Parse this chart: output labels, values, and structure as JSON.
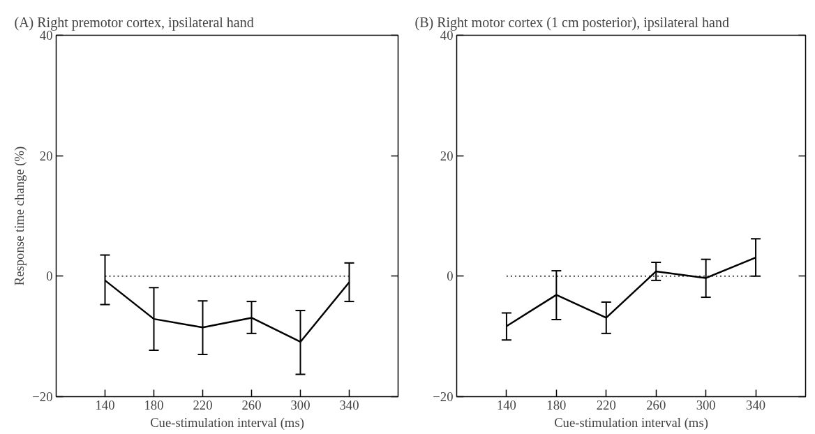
{
  "chart_data": [
    {
      "type": "line",
      "title": "(A)  Right premotor cortex, ipsilateral hand",
      "xlabel": "Cue-stimulation interval (ms)",
      "ylabel": "Response time change (%)",
      "x": [
        140,
        180,
        220,
        260,
        300,
        340
      ],
      "series": [
        {
          "color": "#000000",
          "values": [
            -0.7,
            -7.1,
            -8.5,
            -6.9,
            -10.9,
            -1.0
          ],
          "errors": [
            [
              -4.7,
              3.5
            ],
            [
              -12.3,
              -1.9
            ],
            [
              -13.0,
              -4.1
            ],
            [
              -9.5,
              -4.2
            ],
            [
              -16.3,
              -5.7
            ],
            [
              -4.2,
              2.2
            ]
          ]
        }
      ],
      "xlim": [
        100,
        380
      ],
      "ylim": [
        -20,
        40
      ],
      "xticks": [
        140,
        180,
        220,
        260,
        300,
        340
      ],
      "yticks": [
        -20,
        0,
        20,
        40
      ],
      "ref_lines": [
        {
          "axis": "y",
          "value": 0,
          "line_style": "dotted"
        }
      ],
      "grid": false,
      "marker": "none",
      "line_style": "solid"
    },
    {
      "type": "line",
      "title": "(B)  Right motor cortex (1 cm posterior), ipsilateral hand",
      "xlabel": "Cue-stimulation interval (ms)",
      "x": [
        140,
        180,
        220,
        260,
        300,
        340
      ],
      "series": [
        {
          "color": "#000000",
          "values": [
            -8.3,
            -3.1,
            -6.9,
            0.8,
            -0.3,
            3.1
          ],
          "errors": [
            [
              -10.6,
              -6.1
            ],
            [
              -7.2,
              0.9
            ],
            [
              -9.5,
              -4.3
            ],
            [
              -0.7,
              2.3
            ],
            [
              -3.5,
              2.8
            ],
            [
              0.0,
              6.2
            ]
          ]
        }
      ],
      "xlim": [
        100,
        380
      ],
      "ylim": [
        -20,
        40
      ],
      "xticks": [
        140,
        180,
        220,
        260,
        300,
        340
      ],
      "yticks": [
        -20,
        0,
        20,
        40
      ],
      "ref_lines": [
        {
          "axis": "y",
          "value": 0,
          "line_style": "dotted"
        }
      ],
      "grid": false,
      "marker": "none",
      "line_style": "solid"
    }
  ]
}
